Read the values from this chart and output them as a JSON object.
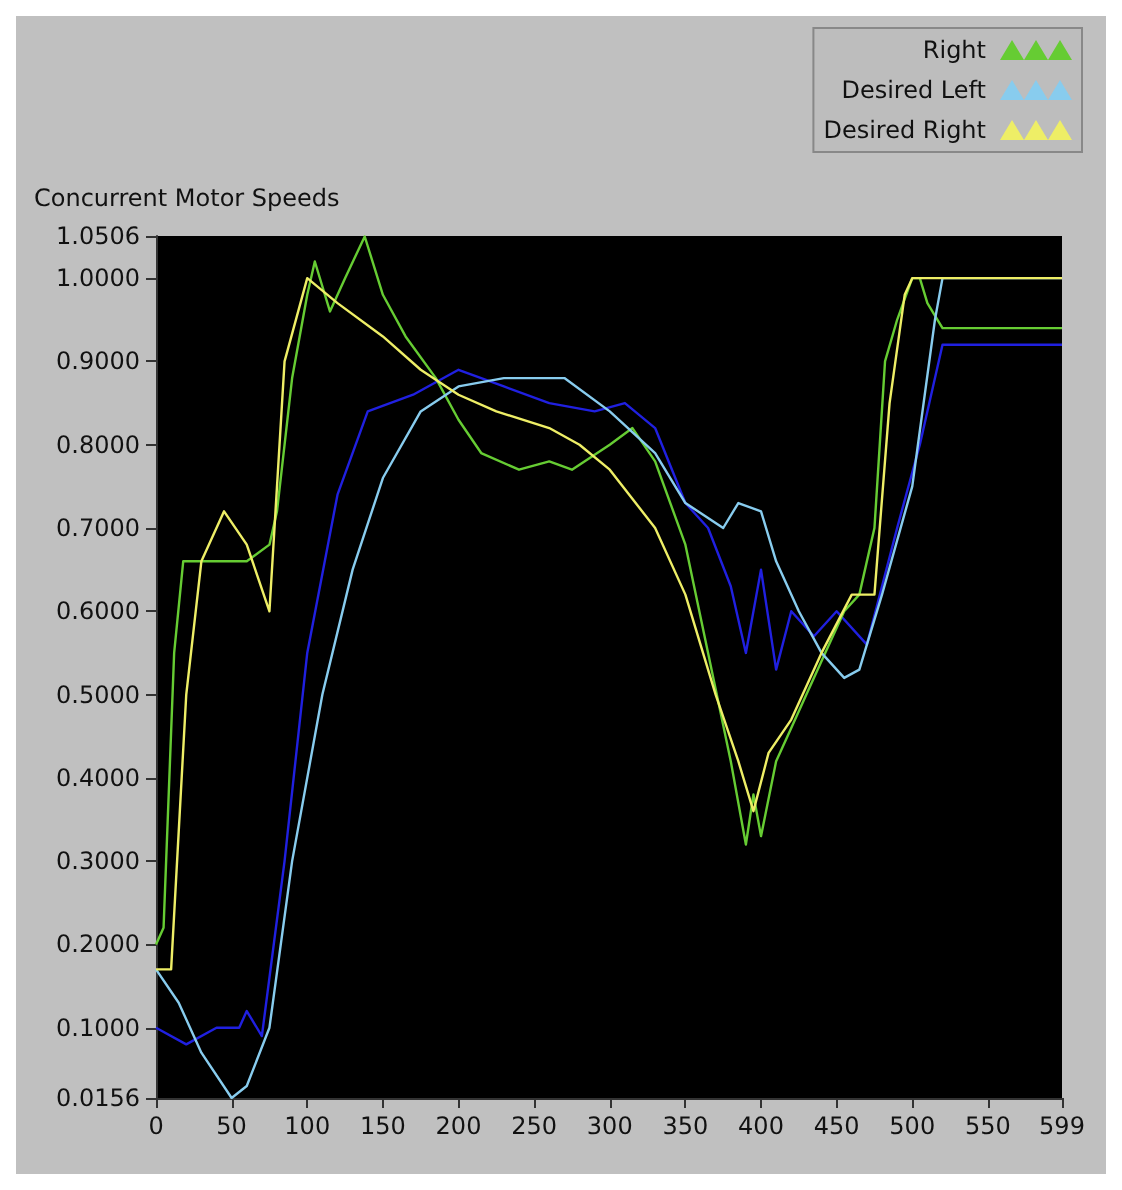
{
  "chart_data": {
    "type": "line",
    "title": "Concurrent Motor Speeds",
    "legend": "top right",
    "grid": false,
    "xlim": [
      0,
      599
    ],
    "xticks": [
      0,
      50,
      100,
      150,
      200,
      250,
      300,
      350,
      400,
      450,
      500,
      550,
      599
    ],
    "ylim": [
      0.0156,
      1.0506
    ],
    "yticks": [
      {
        "value": 0.0156,
        "label": "0.0156"
      },
      {
        "value": 0.1,
        "label": "0.1000"
      },
      {
        "value": 0.2,
        "label": "0.2000"
      },
      {
        "value": 0.3,
        "label": "0.3000"
      },
      {
        "value": 0.4,
        "label": "0.4000"
      },
      {
        "value": 0.5,
        "label": "0.5000"
      },
      {
        "value": 0.6,
        "label": "0.6000"
      },
      {
        "value": 0.7,
        "label": "0.7000"
      },
      {
        "value": 0.8,
        "label": "0.8000"
      },
      {
        "value": 0.9,
        "label": "0.9000"
      },
      {
        "value": 1.0,
        "label": "1.0000"
      },
      {
        "value": 1.0506,
        "label": "1.0506"
      }
    ],
    "series": [
      {
        "color": "#2020e0",
        "x": [
          0,
          20,
          40,
          55,
          60,
          70,
          85,
          100,
          120,
          140,
          170,
          200,
          230,
          260,
          290,
          310,
          330,
          350,
          365,
          380,
          390,
          400,
          410,
          420,
          435,
          450,
          470,
          490,
          505,
          520,
          599
        ],
        "values": [
          0.1,
          0.08,
          0.1,
          0.1,
          0.12,
          0.09,
          0.3,
          0.55,
          0.74,
          0.84,
          0.86,
          0.89,
          0.87,
          0.85,
          0.84,
          0.85,
          0.82,
          0.73,
          0.7,
          0.63,
          0.55,
          0.65,
          0.53,
          0.6,
          0.57,
          0.6,
          0.56,
          0.7,
          0.8,
          0.92,
          0.92
        ]
      },
      {
        "name": "Right",
        "color": "#66cc33",
        "x": [
          0,
          5,
          12,
          18,
          40,
          60,
          75,
          80,
          90,
          100,
          105,
          115,
          125,
          138,
          150,
          165,
          185,
          200,
          215,
          240,
          260,
          275,
          300,
          315,
          330,
          350,
          365,
          380,
          390,
          395,
          400,
          410,
          420,
          430,
          445,
          455,
          465,
          475,
          482,
          490,
          500,
          505,
          510,
          520,
          599
        ],
        "values": [
          0.2,
          0.22,
          0.55,
          0.66,
          0.66,
          0.66,
          0.68,
          0.72,
          0.88,
          0.98,
          1.02,
          0.96,
          1.0,
          1.05,
          0.98,
          0.93,
          0.88,
          0.83,
          0.79,
          0.77,
          0.78,
          0.77,
          0.8,
          0.82,
          0.78,
          0.68,
          0.55,
          0.42,
          0.32,
          0.38,
          0.33,
          0.42,
          0.46,
          0.5,
          0.56,
          0.6,
          0.62,
          0.7,
          0.9,
          0.95,
          1.0,
          1.0,
          0.97,
          0.94,
          0.94
        ]
      },
      {
        "name": "Desired Left",
        "color": "#88ccee",
        "x": [
          0,
          15,
          30,
          50,
          60,
          75,
          90,
          110,
          130,
          150,
          175,
          200,
          230,
          270,
          300,
          330,
          350,
          375,
          385,
          400,
          410,
          425,
          440,
          455,
          465,
          480,
          500,
          515,
          520,
          599
        ],
        "values": [
          0.17,
          0.13,
          0.07,
          0.0156,
          0.03,
          0.1,
          0.3,
          0.5,
          0.65,
          0.76,
          0.84,
          0.87,
          0.88,
          0.88,
          0.84,
          0.79,
          0.73,
          0.7,
          0.73,
          0.72,
          0.66,
          0.6,
          0.55,
          0.52,
          0.53,
          0.62,
          0.75,
          0.95,
          1.0,
          1.0
        ]
      },
      {
        "name": "Desired Right",
        "color": "#eeee66",
        "x": [
          0,
          10,
          20,
          30,
          45,
          60,
          75,
          85,
          100,
          120,
          150,
          175,
          200,
          225,
          260,
          280,
          300,
          330,
          350,
          370,
          385,
          395,
          405,
          420,
          440,
          460,
          475,
          485,
          495,
          500,
          599
        ],
        "values": [
          0.17,
          0.17,
          0.5,
          0.66,
          0.72,
          0.68,
          0.6,
          0.9,
          1.0,
          0.97,
          0.93,
          0.89,
          0.86,
          0.84,
          0.82,
          0.8,
          0.77,
          0.7,
          0.62,
          0.5,
          0.42,
          0.36,
          0.43,
          0.47,
          0.55,
          0.62,
          0.62,
          0.85,
          0.98,
          1.0,
          1.0
        ]
      }
    ]
  }
}
